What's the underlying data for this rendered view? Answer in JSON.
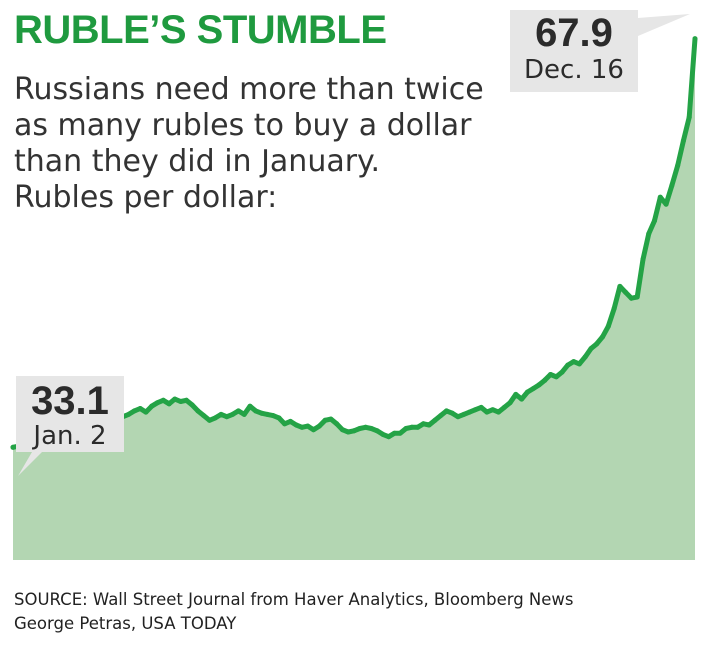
{
  "header": {
    "title": "RUBLE’S STUMBLE",
    "subtitle": "Russians need more than twice as many rubles to buy a dollar than they did in January. Rubles per dollar:"
  },
  "source": {
    "line1": "SOURCE:  Wall Street Journal from Haver Analytics, Bloomberg News",
    "line2": "George Petras, USA TODAY"
  },
  "colors": {
    "accent": "#24a346",
    "title": "#1f9a3f",
    "fill": "#b3d6b2",
    "callout_bg": "#e6e6e6"
  },
  "chart_data": {
    "type": "area",
    "title": "RUBLE’S STUMBLE",
    "ylabel": "Rubles per dollar",
    "ylim": [
      23.5,
      70
    ],
    "x_label_start": "Jan. 2",
    "x_label_end": "Dec. 16",
    "annotations": [
      {
        "value": "33.1",
        "label": "Jan. 2",
        "index": 0
      },
      {
        "value": "67.9",
        "label": "Dec. 16",
        "index": -1
      }
    ],
    "values": [
      33.1,
      33.2,
      33.1,
      33.4,
      33.3,
      33.6,
      34.2,
      34.5,
      34.9,
      35.3,
      35.4,
      35.7,
      35.9,
      35.7,
      35.2,
      35.6,
      35.8,
      35.9,
      35.4,
      35.7,
      35.9,
      36.2,
      36.4,
      36.1,
      36.6,
      36.9,
      37.1,
      36.8,
      37.2,
      37.0,
      37.1,
      36.7,
      36.2,
      35.8,
      35.4,
      35.6,
      35.9,
      35.7,
      35.9,
      36.2,
      35.9,
      36.6,
      36.2,
      36.0,
      35.9,
      35.8,
      35.6,
      35.1,
      35.3,
      35.0,
      34.8,
      34.9,
      34.6,
      34.9,
      35.4,
      35.5,
      35.1,
      34.6,
      34.4,
      34.5,
      34.7,
      34.8,
      34.7,
      34.5,
      34.2,
      34.0,
      34.3,
      34.3,
      34.7,
      34.8,
      34.8,
      35.1,
      35.0,
      35.4,
      35.8,
      36.2,
      36.0,
      35.7,
      35.9,
      36.1,
      36.3,
      36.5,
      36.1,
      36.3,
      36.1,
      36.5,
      36.9,
      37.6,
      37.2,
      37.8,
      38.1,
      38.4,
      38.8,
      39.3,
      39.1,
      39.5,
      40.1,
      40.4,
      40.2,
      40.8,
      41.5,
      41.9,
      42.5,
      43.4,
      44.9,
      46.8,
      46.3,
      45.8,
      45.9,
      49.1,
      51.3,
      52.4,
      54.4,
      53.8,
      55.4,
      57.1,
      59.2,
      61.2,
      67.9
    ]
  }
}
